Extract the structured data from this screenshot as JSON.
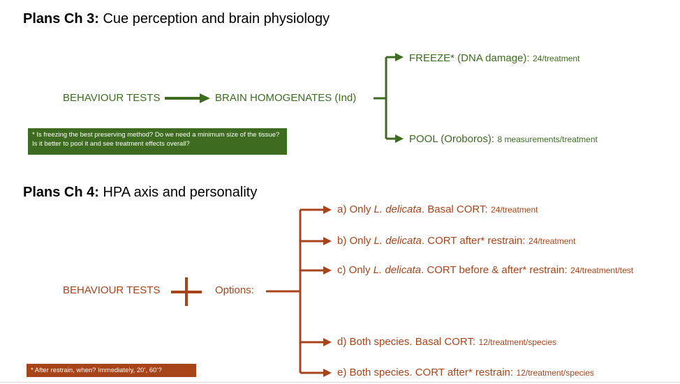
{
  "colors": {
    "green": "#3d6b1f",
    "rust": "#a8441a"
  },
  "ch3": {
    "title_bold": "Plans Ch 3:",
    "title_rest": " Cue perception and brain physiology",
    "behaviour": "BEHAVIOUR TESTS",
    "brain": "BRAIN HOMOGENATES (Ind)",
    "freeze_main": "FREEZE* (DNA damage):",
    "freeze_small": "24/treatment",
    "pool_main": "POOL (Oroboros):",
    "pool_small": "8 measurements/treatment",
    "note": "* Is freezing the best preserving method? Do we need a minimum size of the tissue? Is it better to pool it and see treatment effects overall?"
  },
  "ch4": {
    "title_bold": "Plans Ch 4:",
    "title_rest": " HPA axis and personality",
    "behaviour": "BEHAVIOUR TESTS",
    "options": "Options:",
    "note": "* After restrain, when? Immediately, 20’, 60’?",
    "items": [
      {
        "a": "a) Only ",
        "sp": "L. delicata",
        "b": ". Basal CORT:",
        "small": "24/treatment"
      },
      {
        "a": "b) Only ",
        "sp": "L. delicata",
        "b": ". CORT after* restrain:",
        "small": "24/treatment"
      },
      {
        "a": "c) Only ",
        "sp": "L. delicata",
        "b": ". CORT before & after* restrain:",
        "small": "24/treatment/test"
      },
      {
        "a": "d) Both species. Basal CORT:",
        "sp": "",
        "b": "",
        "small": "12/treatment/species"
      },
      {
        "a": "e) Both species. CORT after* restrain:",
        "sp": "",
        "b": "",
        "small": "12/treatment/species"
      }
    ]
  }
}
